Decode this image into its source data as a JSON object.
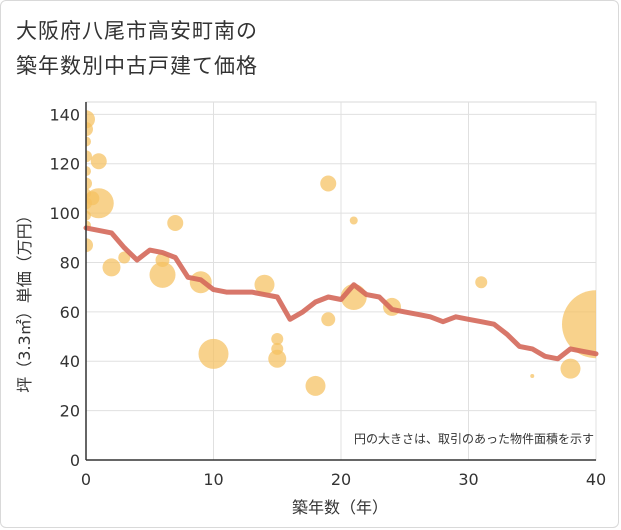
{
  "title_line1": "大阪府八尾市高安町南の",
  "title_line2": "築年数別中古戸建て価格",
  "chart_data": {
    "type": "scatter",
    "title": "大阪府八尾市高安町南の築年数別中古戸建て価格",
    "xlabel": "築年数（年）",
    "ylabel": "坪（3.3㎡）単価（万円）",
    "xlim": [
      0,
      40
    ],
    "ylim": [
      0,
      145
    ],
    "xticks": [
      0,
      10,
      20,
      30,
      40
    ],
    "yticks": [
      0,
      20,
      40,
      60,
      80,
      100,
      120,
      140
    ],
    "grid": true,
    "annotation": "円の大きさは、取引のあった物件面積を示す",
    "colors": {
      "bubble": "#f5c060",
      "line": "#d4685a",
      "axis": "#333333"
    },
    "bubbles": [
      {
        "x": 0,
        "y": 138,
        "r": 9
      },
      {
        "x": 0,
        "y": 134,
        "r": 7
      },
      {
        "x": 0,
        "y": 129,
        "r": 5
      },
      {
        "x": 0,
        "y": 123,
        "r": 6
      },
      {
        "x": 0,
        "y": 117,
        "r": 5
      },
      {
        "x": 0,
        "y": 112,
        "r": 6
      },
      {
        "x": 0,
        "y": 108,
        "r": 5
      },
      {
        "x": 0,
        "y": 104,
        "r": 6
      },
      {
        "x": 0,
        "y": 99,
        "r": 5
      },
      {
        "x": 0,
        "y": 95,
        "r": 5
      },
      {
        "x": 0,
        "y": 87,
        "r": 7
      },
      {
        "x": 0.5,
        "y": 106,
        "r": 7
      },
      {
        "x": 1,
        "y": 121,
        "r": 8
      },
      {
        "x": 1,
        "y": 104,
        "r": 15
      },
      {
        "x": 2,
        "y": 78,
        "r": 9
      },
      {
        "x": 3,
        "y": 82,
        "r": 6
      },
      {
        "x": 6,
        "y": 81,
        "r": 7
      },
      {
        "x": 6,
        "y": 75,
        "r": 13
      },
      {
        "x": 7,
        "y": 96,
        "r": 8
      },
      {
        "x": 9,
        "y": 72,
        "r": 11
      },
      {
        "x": 10,
        "y": 43,
        "r": 15
      },
      {
        "x": 14,
        "y": 71,
        "r": 10
      },
      {
        "x": 15,
        "y": 49,
        "r": 6
      },
      {
        "x": 15,
        "y": 45,
        "r": 6
      },
      {
        "x": 15,
        "y": 41,
        "r": 9
      },
      {
        "x": 18,
        "y": 30,
        "r": 10
      },
      {
        "x": 19,
        "y": 112,
        "r": 8
      },
      {
        "x": 19,
        "y": 57,
        "r": 7
      },
      {
        "x": 21,
        "y": 97,
        "r": 4
      },
      {
        "x": 21,
        "y": 66,
        "r": 13
      },
      {
        "x": 24,
        "y": 62,
        "r": 9
      },
      {
        "x": 31,
        "y": 72,
        "r": 6
      },
      {
        "x": 35,
        "y": 34,
        "r": 2
      },
      {
        "x": 38,
        "y": 37,
        "r": 10
      },
      {
        "x": 40,
        "y": 55,
        "r": 34
      }
    ],
    "series": [
      {
        "x": [
          0,
          1,
          2,
          3,
          4,
          5,
          6,
          7,
          8,
          9,
          10,
          11,
          12,
          13,
          14,
          15,
          16,
          17,
          18,
          19,
          20,
          21,
          22,
          23,
          24,
          25,
          26,
          27,
          28,
          29,
          30,
          31,
          32,
          33,
          34,
          35,
          36,
          37,
          38,
          39,
          40
        ],
        "y": [
          94,
          93,
          92,
          86,
          81,
          85,
          84,
          82,
          74,
          73,
          69,
          68,
          68,
          68,
          67,
          66,
          57,
          60,
          64,
          66,
          65,
          71,
          67,
          66,
          61,
          60,
          59,
          58,
          56,
          58,
          57,
          56,
          55,
          51,
          46,
          45,
          42,
          41,
          45,
          44,
          43
        ]
      }
    ]
  }
}
